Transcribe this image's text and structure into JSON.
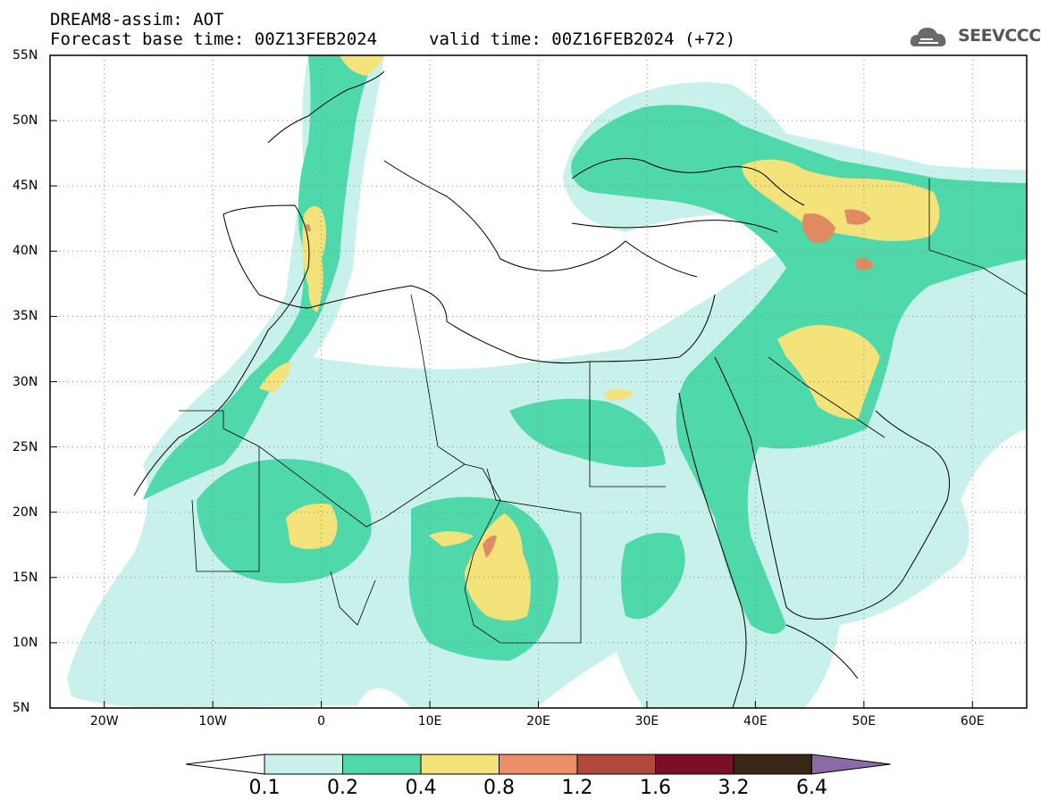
{
  "header": {
    "title_line1": "DREAM8-assim: AOT",
    "title_line2": "Forecast base time: 00Z13FEB2024",
    "valid_time": "valid time: 00Z16FEB2024 (+72)",
    "logo_text": "SEEVCCC"
  },
  "axes": {
    "lat_labels": [
      "55N",
      "50N",
      "45N",
      "40N",
      "35N",
      "30N",
      "25N",
      "20N",
      "15N",
      "10N",
      "5N"
    ],
    "lon_labels": [
      "20W",
      "10W",
      "0",
      "10E",
      "20E",
      "30E",
      "40E",
      "50E",
      "60E"
    ]
  },
  "colorbar": {
    "labels": [
      "0.1",
      "0.2",
      "0.4",
      "0.8",
      "1.2",
      "1.6",
      "3.2",
      "6.4"
    ],
    "colors": [
      "#ffffff",
      "#c7f1ea",
      "#4fd9aa",
      "#f4e27a",
      "#eb9066",
      "#b14a3c",
      "#7a0f27",
      "#3a2617",
      "#8c6aa6"
    ]
  }
}
